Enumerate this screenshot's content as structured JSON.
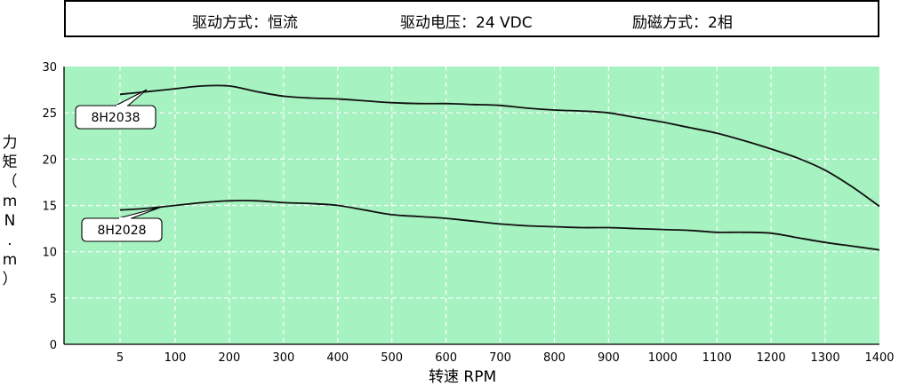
{
  "header": {
    "drive_mode": "驱动方式：恒流",
    "drive_voltage": "驱动电压：24 VDC",
    "excitation": "励磁方式：2相"
  },
  "colors": {
    "plot_bg": "#a6f2c0",
    "grid": "#ffffff",
    "line": "#111111"
  },
  "chart_data": {
    "type": "line",
    "xlabel": "转速 RPM",
    "ylabel": "力矩（mN.m）",
    "ylabel_chars": [
      "力",
      "矩",
      "（",
      "m",
      "N",
      ".",
      "m",
      "）"
    ],
    "x_ticks": [
      "5",
      "100",
      "200",
      "300",
      "400",
      "500",
      "600",
      "700",
      "800",
      "900",
      "1000",
      "1100",
      "1200",
      "1300",
      "1400"
    ],
    "y_ticks": [
      "0",
      "5",
      "10",
      "15",
      "20",
      "25",
      "30"
    ],
    "xlim": [
      5,
      1400
    ],
    "ylim": [
      0,
      30
    ],
    "grid": true,
    "series": [
      {
        "name": "8H2038",
        "x": [
          5,
          50,
          100,
          150,
          200,
          250,
          300,
          350,
          400,
          450,
          500,
          550,
          600,
          650,
          700,
          750,
          800,
          850,
          900,
          950,
          1000,
          1050,
          1100,
          1150,
          1200,
          1250,
          1300,
          1350,
          1400
        ],
        "y": [
          27.0,
          27.3,
          27.6,
          27.9,
          27.9,
          27.3,
          26.8,
          26.6,
          26.5,
          26.3,
          26.1,
          26.0,
          26.0,
          25.9,
          25.8,
          25.5,
          25.3,
          25.2,
          25.0,
          24.5,
          24.0,
          23.4,
          22.8,
          22.0,
          21.1,
          20.1,
          18.8,
          17.0,
          14.9
        ]
      },
      {
        "name": "8H2028",
        "x": [
          5,
          50,
          100,
          150,
          200,
          250,
          300,
          350,
          400,
          450,
          500,
          550,
          600,
          650,
          700,
          750,
          800,
          850,
          900,
          950,
          1000,
          1050,
          1100,
          1150,
          1200,
          1250,
          1300,
          1350,
          1400
        ],
        "y": [
          14.5,
          14.7,
          15.0,
          15.3,
          15.5,
          15.5,
          15.3,
          15.2,
          15.0,
          14.5,
          14.0,
          13.8,
          13.6,
          13.3,
          13.0,
          12.8,
          12.7,
          12.6,
          12.6,
          12.5,
          12.4,
          12.3,
          12.1,
          12.1,
          12.0,
          11.5,
          11.0,
          10.6,
          10.2
        ]
      }
    ]
  }
}
